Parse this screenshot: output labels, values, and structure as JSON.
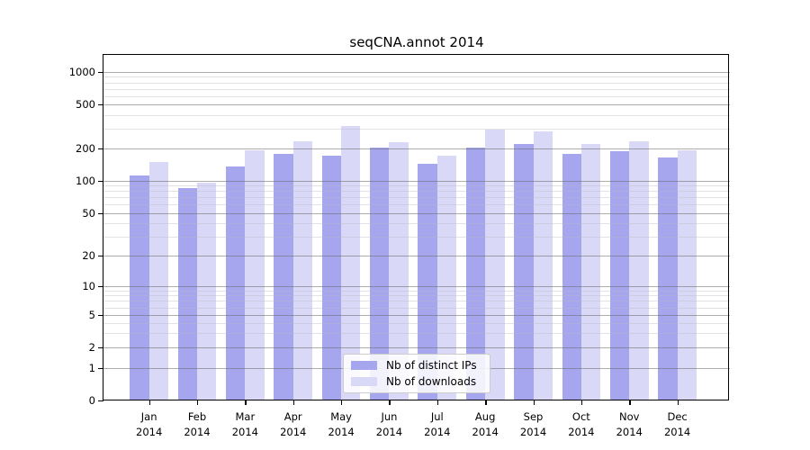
{
  "chart_data": {
    "type": "bar",
    "title": "seqCNA.annot 2014",
    "categories": [
      "Jan 2014",
      "Feb 2014",
      "Mar 2014",
      "Apr 2014",
      "May 2014",
      "Jun 2014",
      "Jul 2014",
      "Aug 2014",
      "Sep 2014",
      "Oct 2014",
      "Nov 2014",
      "Dec 2014"
    ],
    "month_labels": [
      "Jan",
      "Feb",
      "Mar",
      "Apr",
      "May",
      "Jun",
      "Jul",
      "Aug",
      "Sep",
      "Oct",
      "Nov",
      "Dec"
    ],
    "year_label": "2014",
    "series": [
      {
        "name": "Nb of distinct IPs",
        "color": "#a6a6ee",
        "values": [
          113,
          85,
          137,
          177,
          171,
          205,
          145,
          205,
          218,
          178,
          187,
          166
        ]
      },
      {
        "name": "Nb of downloads",
        "color": "#d9d9f7",
        "values": [
          149,
          97,
          192,
          232,
          320,
          230,
          170,
          298,
          286,
          221,
          234,
          192
        ]
      }
    ],
    "y_axis": {
      "scale": "log-like",
      "ticks": [
        0,
        1,
        2,
        5,
        10,
        20,
        50,
        100,
        200,
        500,
        1000
      ],
      "minor_ticks": [
        3,
        4,
        6,
        7,
        8,
        9,
        30,
        40,
        60,
        70,
        80,
        90,
        300,
        400,
        600,
        700,
        800,
        900
      ],
      "range_top": 1000
    },
    "legend": {
      "position": "lower-center-inside",
      "entries": [
        "Nb of distinct IPs",
        "Nb of downloads"
      ]
    },
    "grid": "on",
    "colors": {
      "background": "#ffffff",
      "axis": "#000000",
      "major_grid": "#b0b0b0",
      "minor_grid": "#e4e4e9",
      "legend_border": "#cccccc"
    }
  }
}
